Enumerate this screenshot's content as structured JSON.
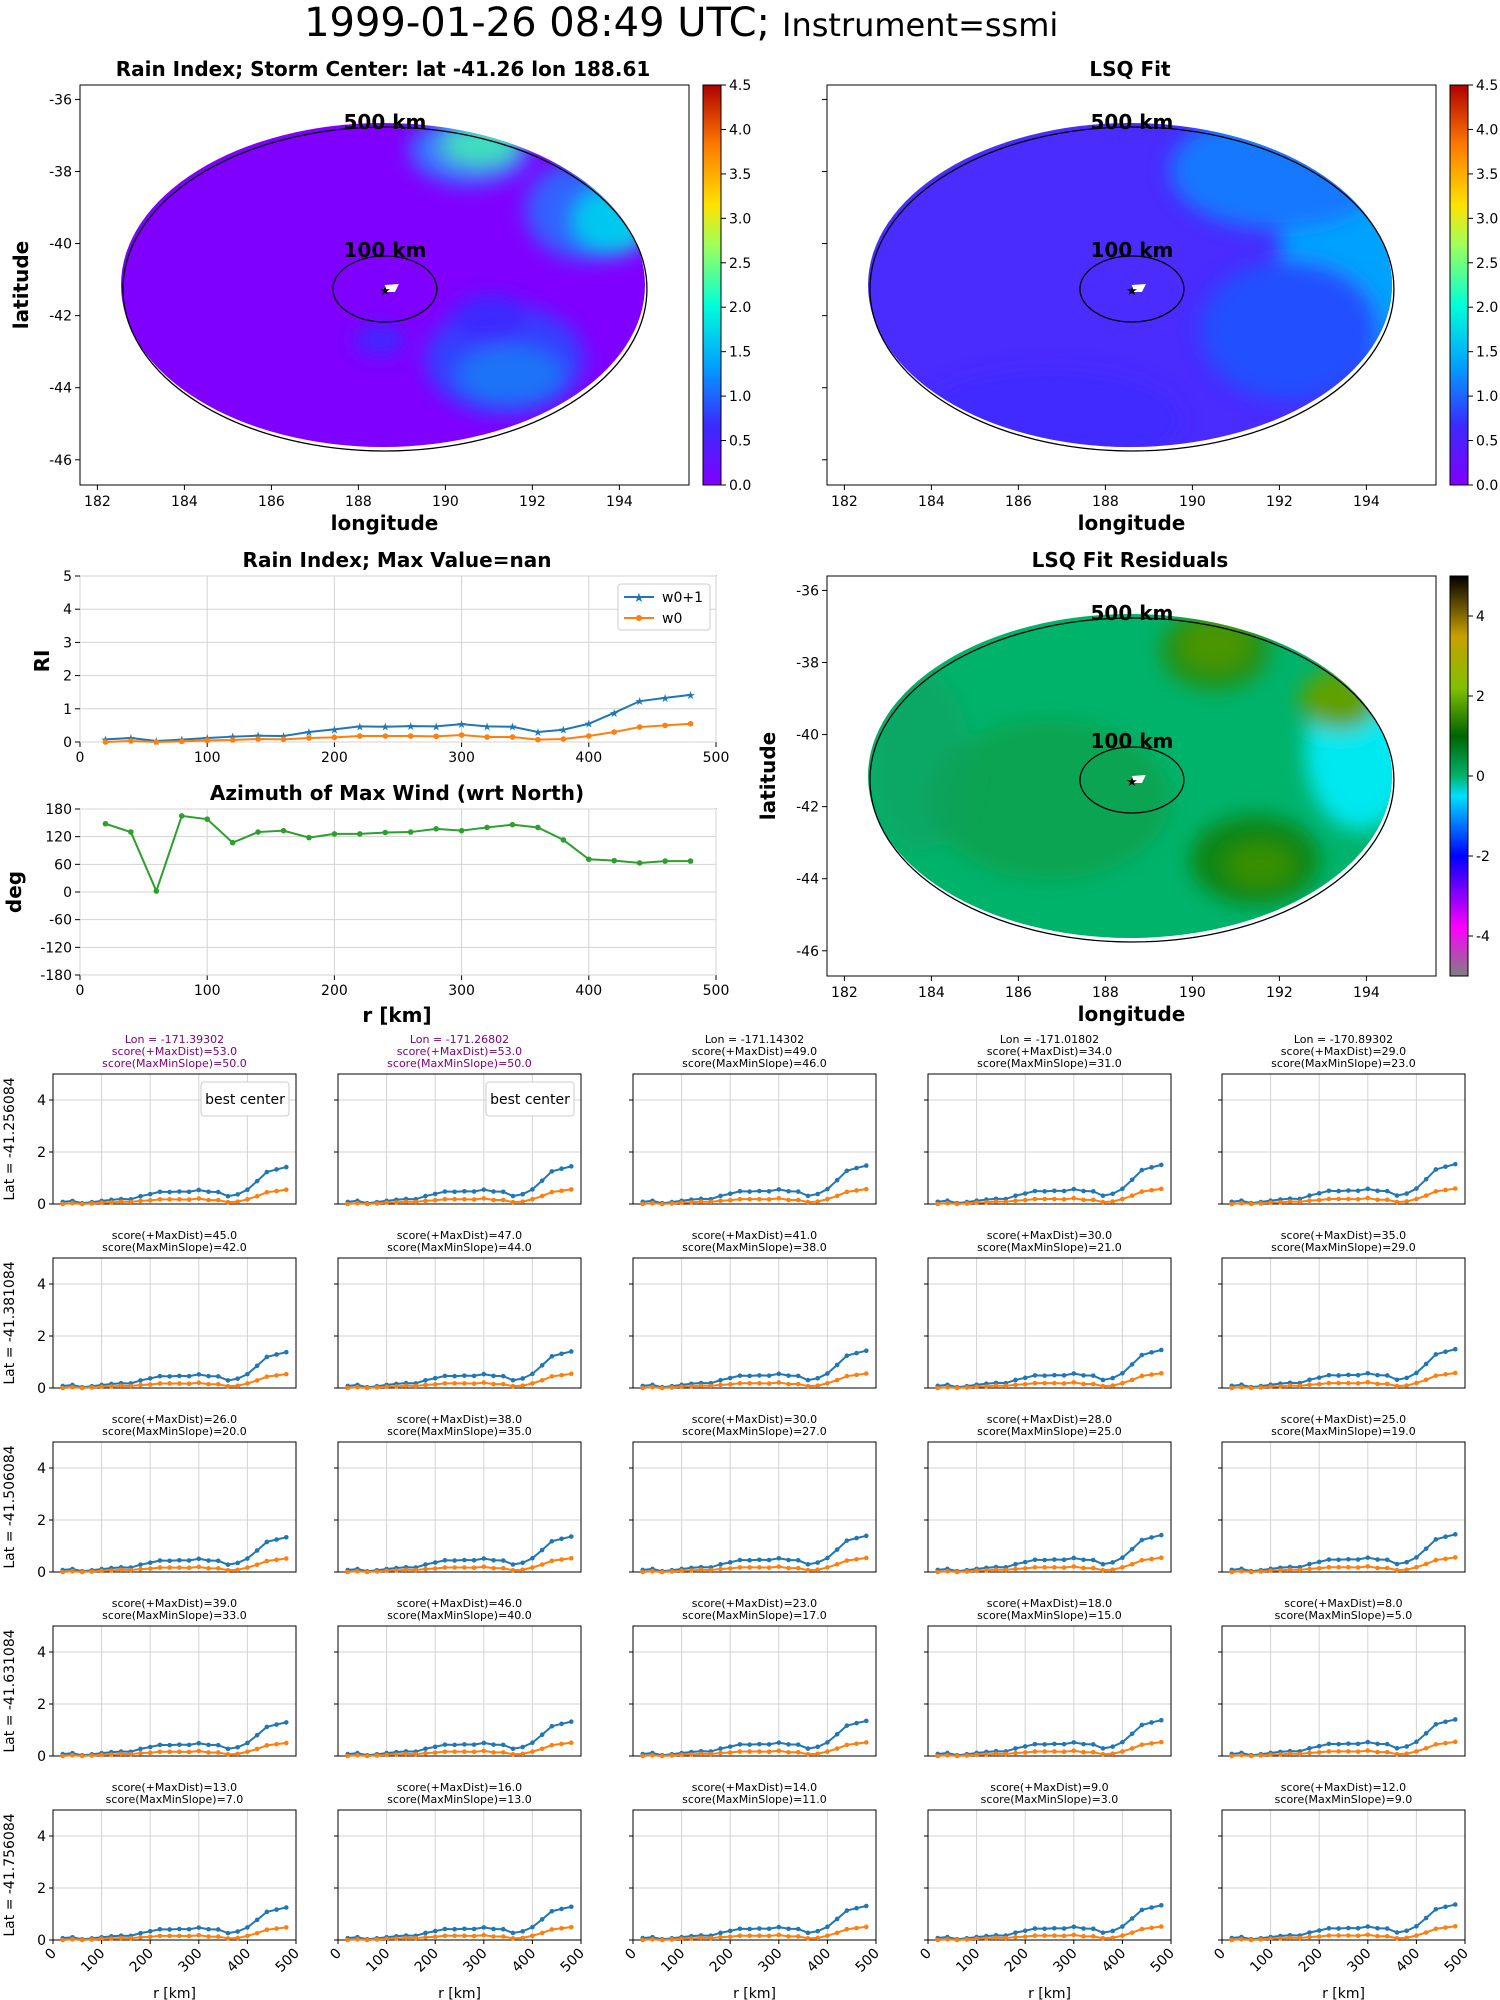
{
  "suptitle": {
    "main": "1999-01-26 08:49 UTC;",
    "sub": "Instrument=ssmi"
  },
  "colors": {
    "w0p1": "#1f77b4",
    "w0": "#ff7f0e",
    "azimuth": "#2ca02c",
    "best_note": "#800080",
    "grid": "#d3d3d3",
    "background_rain": "#8000ff",
    "background_fit": "#3a2bff",
    "background_resid": "#00b36b"
  },
  "maps": [
    {
      "key": "rain",
      "title": "Rain Index; Storm Center: lat -41.26 lon 188.61",
      "xlabel": "longitude",
      "ylabel": "latitude"
    },
    {
      "key": "fit",
      "title": "LSQ Fit",
      "xlabel": "longitude",
      "ylabel": ""
    },
    {
      "key": "resid",
      "title": "LSQ Fit Residuals",
      "xlabel": "longitude",
      "ylabel": "latitude"
    }
  ],
  "map_ring_labels": [
    "500 km",
    "100 km"
  ],
  "map_axes": {
    "xlim": [
      181.6,
      195.6
    ],
    "ylim": [
      -46.7,
      -35.6
    ],
    "xticks": [
      "182",
      "184",
      "186",
      "188",
      "190",
      "192",
      "194"
    ],
    "yticks": [
      "-36",
      "-38",
      "-40",
      "-42",
      "-44",
      "-46"
    ],
    "center": {
      "lon": 188.61,
      "lat": -41.26
    }
  },
  "colorbars": {
    "rain": {
      "ticks": [
        "0.0",
        "0.5",
        "1.0",
        "1.5",
        "2.0",
        "2.5",
        "3.0",
        "3.5",
        "4.0",
        "4.5"
      ],
      "range": [
        0,
        4.5
      ]
    },
    "resid": {
      "ticks": [
        "-4",
        "-2",
        "0",
        "2",
        "4"
      ],
      "range": [
        -5,
        5
      ]
    }
  },
  "rain_profile": {
    "title": "Rain Index; Max Value=nan",
    "ylabel": "RI",
    "ylim": [
      0,
      5
    ],
    "yticks": [
      "0",
      "1",
      "2",
      "3",
      "4",
      "5"
    ],
    "xticks": [
      "0",
      "100",
      "200",
      "300",
      "400",
      "500"
    ],
    "legend": [
      "w0+1",
      "w0"
    ]
  },
  "azimuth": {
    "title": "Azimuth of Max Wind (wrt North)",
    "ylabel": "deg",
    "xlabel": "r [km]",
    "ylim": [
      -180,
      180
    ],
    "yticks": [
      "180",
      "120",
      "60",
      "0",
      "-60",
      "-120",
      "-180"
    ],
    "xticks": [
      "0",
      "100",
      "200",
      "300",
      "400",
      "500"
    ]
  },
  "grid_panels": {
    "rows": [
      {
        "label": "Lat = -41.256084",
        "cols": [
          {
            "l1": "Lon = -171.39302",
            "l2": "score(+MaxDist)=53.0",
            "l3": "score(MaxMinSlope)=50.0",
            "best": true
          },
          {
            "l1": "Lon = -171.26802",
            "l2": "score(+MaxDist)=53.0",
            "l3": "score(MaxMinSlope)=50.0",
            "best": true
          },
          {
            "l1": "Lon = -171.14302",
            "l2": "score(+MaxDist)=49.0",
            "l3": "score(MaxMinSlope)=46.0",
            "best": false
          },
          {
            "l1": "Lon = -171.01802",
            "l2": "score(+MaxDist)=34.0",
            "l3": "score(MaxMinSlope)=31.0",
            "best": false
          },
          {
            "l1": "Lon = -170.89302",
            "l2": "score(+MaxDist)=29.0",
            "l3": "score(MaxMinSlope)=23.0",
            "best": false
          }
        ]
      },
      {
        "label": "Lat = -41.381084",
        "cols": [
          {
            "l1": "",
            "l2": "score(+MaxDist)=45.0",
            "l3": "score(MaxMinSlope)=42.0",
            "best": false
          },
          {
            "l1": "",
            "l2": "score(+MaxDist)=47.0",
            "l3": "score(MaxMinSlope)=44.0",
            "best": false
          },
          {
            "l1": "",
            "l2": "score(+MaxDist)=41.0",
            "l3": "score(MaxMinSlope)=38.0",
            "best": false
          },
          {
            "l1": "",
            "l2": "score(+MaxDist)=30.0",
            "l3": "score(MaxMinSlope)=21.0",
            "best": false
          },
          {
            "l1": "",
            "l2": "score(+MaxDist)=35.0",
            "l3": "score(MaxMinSlope)=29.0",
            "best": false
          }
        ]
      },
      {
        "label": "Lat = -41.506084",
        "cols": [
          {
            "l1": "",
            "l2": "score(+MaxDist)=26.0",
            "l3": "score(MaxMinSlope)=20.0",
            "best": false
          },
          {
            "l1": "",
            "l2": "score(+MaxDist)=38.0",
            "l3": "score(MaxMinSlope)=35.0",
            "best": false
          },
          {
            "l1": "",
            "l2": "score(+MaxDist)=30.0",
            "l3": "score(MaxMinSlope)=27.0",
            "best": false
          },
          {
            "l1": "",
            "l2": "score(+MaxDist)=28.0",
            "l3": "score(MaxMinSlope)=25.0",
            "best": false
          },
          {
            "l1": "",
            "l2": "score(+MaxDist)=25.0",
            "l3": "score(MaxMinSlope)=19.0",
            "best": false
          }
        ]
      },
      {
        "label": "Lat = -41.631084",
        "cols": [
          {
            "l1": "",
            "l2": "score(+MaxDist)=39.0",
            "l3": "score(MaxMinSlope)=33.0",
            "best": false
          },
          {
            "l1": "",
            "l2": "score(+MaxDist)=46.0",
            "l3": "score(MaxMinSlope)=40.0",
            "best": false
          },
          {
            "l1": "",
            "l2": "score(+MaxDist)=23.0",
            "l3": "score(MaxMinSlope)=17.0",
            "best": false
          },
          {
            "l1": "",
            "l2": "score(+MaxDist)=18.0",
            "l3": "score(MaxMinSlope)=15.0",
            "best": false
          },
          {
            "l1": "",
            "l2": "score(+MaxDist)=8.0",
            "l3": "score(MaxMinSlope)=5.0",
            "best": false
          }
        ]
      },
      {
        "label": "Lat = -41.756084",
        "cols": [
          {
            "l1": "",
            "l2": "score(+MaxDist)=13.0",
            "l3": "score(MaxMinSlope)=7.0",
            "best": false
          },
          {
            "l1": "",
            "l2": "score(+MaxDist)=16.0",
            "l3": "score(MaxMinSlope)=13.0",
            "best": false
          },
          {
            "l1": "",
            "l2": "score(+MaxDist)=14.0",
            "l3": "score(MaxMinSlope)=11.0",
            "best": false
          },
          {
            "l1": "",
            "l2": "score(+MaxDist)=9.0",
            "l3": "score(MaxMinSlope)=3.0",
            "best": false
          },
          {
            "l1": "",
            "l2": "score(+MaxDist)=12.0",
            "l3": "score(MaxMinSlope)=9.0",
            "best": false
          }
        ]
      }
    ],
    "best_label": "best center",
    "xlabel": "r [km]",
    "yticks": [
      "0",
      "2",
      "4"
    ],
    "xticks": [
      "0",
      "100",
      "200",
      "300",
      "400",
      "500"
    ]
  },
  "chart_data": [
    {
      "type": "line",
      "title": "Rain Index; Max Value=nan",
      "ylabel": "RI",
      "xlim": [
        0,
        500
      ],
      "ylim": [
        0,
        5
      ],
      "x": [
        20,
        40,
        60,
        80,
        100,
        120,
        140,
        160,
        180,
        200,
        220,
        240,
        260,
        280,
        300,
        320,
        340,
        360,
        380,
        400,
        420,
        440,
        460,
        480
      ],
      "series": [
        {
          "name": "w0+1",
          "values": [
            0.08,
            0.12,
            0.03,
            0.07,
            0.12,
            0.16,
            0.19,
            0.18,
            0.3,
            0.38,
            0.47,
            0.46,
            0.48,
            0.47,
            0.54,
            0.47,
            0.46,
            0.3,
            0.37,
            0.55,
            0.88,
            1.23,
            1.33,
            1.42
          ]
        },
        {
          "name": "w0",
          "values": [
            0.0,
            0.03,
            0.0,
            0.02,
            0.05,
            0.06,
            0.09,
            0.08,
            0.12,
            0.14,
            0.18,
            0.18,
            0.18,
            0.17,
            0.21,
            0.15,
            0.15,
            0.07,
            0.09,
            0.18,
            0.3,
            0.45,
            0.5,
            0.55
          ]
        }
      ]
    },
    {
      "type": "line",
      "title": "Azimuth of Max Wind (wrt North)",
      "xlabel": "r [km]",
      "ylabel": "deg",
      "xlim": [
        0,
        500
      ],
      "ylim": [
        -180,
        180
      ],
      "x": [
        20,
        40,
        60,
        80,
        100,
        120,
        140,
        160,
        180,
        200,
        220,
        240,
        260,
        280,
        300,
        320,
        340,
        360,
        380,
        400,
        420,
        440,
        460,
        480
      ],
      "series": [
        {
          "values": [
            148,
            130,
            2,
            165,
            158,
            107,
            130,
            133,
            118,
            126,
            126,
            129,
            130,
            137,
            133,
            140,
            146,
            140,
            113,
            71,
            68,
            63,
            67,
            67
          ]
        }
      ]
    }
  ]
}
